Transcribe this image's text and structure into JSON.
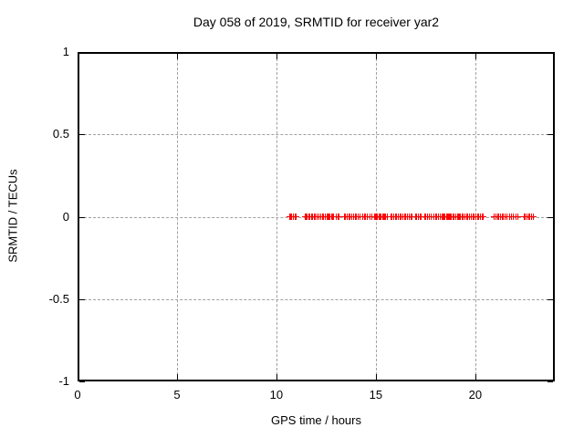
{
  "title": "Day 058 of 2019, SRMTID for receiver yar2",
  "xlabel": "GPS time / hours",
  "ylabel": "SRMTID / TECUs",
  "axes": {
    "x_tick_labels": [
      "0",
      "5",
      "10",
      "15",
      "20"
    ],
    "y_tick_labels": [
      "1",
      "0.5",
      "0",
      "-0.5",
      "-1"
    ]
  },
  "colors": {
    "marker": "#ff0000",
    "grid": "#a0a0a0",
    "border": "#000000"
  },
  "chart_data": {
    "type": "scatter",
    "title": "Day 058 of 2019, SRMTID for receiver yar2",
    "xlabel": "GPS time / hours",
    "ylabel": "SRMTID / TECUs",
    "xlim": [
      0,
      24
    ],
    "ylim": [
      -1,
      1
    ],
    "x_ticks": [
      0,
      5,
      10,
      15,
      20
    ],
    "y_ticks": [
      1,
      0.5,
      0,
      -0.5,
      -1
    ],
    "grid": true,
    "legend": false,
    "series": [
      {
        "name": "SRMTID",
        "marker": "plus",
        "color": "#ff0000",
        "y_constant": 0,
        "x": [
          10.69,
          10.73,
          10.78,
          10.87,
          10.96,
          11.01,
          11.43,
          11.48,
          11.53,
          11.62,
          11.66,
          11.75,
          11.8,
          11.89,
          11.94,
          12.03,
          12.12,
          12.21,
          12.3,
          12.35,
          12.39,
          12.44,
          12.48,
          12.53,
          12.58,
          12.62,
          12.67,
          12.71,
          12.76,
          12.81,
          12.85,
          12.99,
          13.08,
          13.17,
          13.4,
          13.45,
          13.54,
          13.58,
          13.67,
          13.72,
          13.77,
          13.9,
          13.99,
          14.04,
          14.13,
          14.22,
          14.32,
          14.41,
          14.5,
          14.59,
          14.69,
          14.78,
          14.92,
          14.96,
          15.01,
          15.06,
          15.15,
          15.19,
          15.24,
          15.33,
          15.38,
          15.42,
          15.51,
          15.56,
          15.6,
          15.74,
          15.79,
          15.83,
          15.88,
          15.97,
          16.02,
          16.06,
          16.11,
          16.15,
          16.2,
          16.29,
          16.34,
          16.38,
          16.43,
          16.47,
          16.52,
          16.57,
          16.61,
          16.66,
          16.7,
          16.75,
          16.79,
          16.84,
          16.98,
          17.03,
          17.07,
          17.12,
          17.21,
          17.3,
          17.44,
          17.49,
          17.58,
          17.62,
          17.71,
          17.76,
          17.9,
          17.94,
          17.99,
          18.08,
          18.13,
          18.26,
          18.31,
          18.35,
          18.4,
          18.44,
          18.49,
          18.54,
          18.58,
          18.63,
          18.67,
          18.72,
          18.76,
          18.81,
          18.9,
          18.95,
          19.0,
          19.04,
          19.09,
          19.13,
          19.18,
          19.22,
          19.27,
          19.32,
          19.36,
          19.41,
          19.5,
          19.55,
          19.64,
          19.69,
          19.73,
          19.78,
          19.82,
          19.87,
          19.91,
          19.96,
          20.01,
          20.1,
          20.19,
          20.24,
          20.33,
          20.42,
          20.93,
          20.97,
          21.02,
          21.06,
          21.11,
          21.2,
          21.25,
          21.29,
          21.38,
          21.43,
          21.48,
          21.57,
          21.61,
          21.71,
          21.8,
          21.89,
          21.93,
          22.03,
          22.07,
          22.16,
          22.44,
          22.49,
          22.53,
          22.62,
          22.67,
          22.76,
          22.85,
          22.9,
          22.94
        ]
      }
    ]
  }
}
